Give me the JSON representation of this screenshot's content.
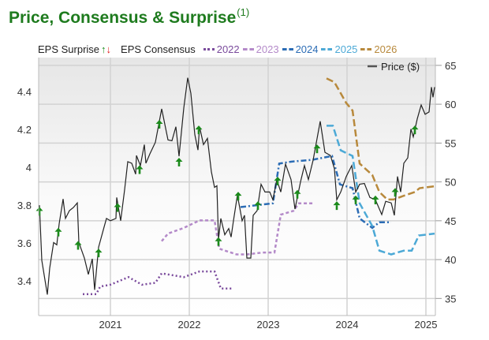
{
  "title": "Price, Consensus & Surprise",
  "title_footnote": "(1)",
  "legend": {
    "eps_surprise": "EPS Surprise",
    "up_arrow": "↑",
    "down_arrow": "↓",
    "eps_consensus": "EPS Consensus",
    "series": [
      {
        "label": "2022",
        "color": "#7a4a9c",
        "style": "dotted"
      },
      {
        "label": "2023",
        "color": "#b48ac9",
        "style": "dashed"
      },
      {
        "label": "2024",
        "color": "#2b6cb5",
        "style": "dashdot"
      },
      {
        "label": "2025",
        "color": "#4ca9d6",
        "style": "longdash"
      },
      {
        "label": "2026",
        "color": "#b8893c",
        "style": "longdash"
      }
    ],
    "price": "Price ($)"
  },
  "colors": {
    "surprise_up": "#1b8a1b",
    "surprise_down": "#e02020",
    "price": "#222222",
    "title": "#1e7b1e"
  },
  "chart_data": {
    "type": "line",
    "title": "Price, Consensus & Surprise",
    "xlim": [
      2020.09,
      2025.12
    ],
    "x_ticks": [
      "2021",
      "2022",
      "2023",
      "2024",
      "2025"
    ],
    "y_left": {
      "label": "EPS",
      "lim": [
        3.217,
        4.58
      ],
      "ticks": [
        "3.4",
        "3.6",
        "3.8",
        "4",
        "4.2",
        "4.4"
      ]
    },
    "y_right": {
      "label": "Price ($)",
      "lim": [
        32.8,
        66
      ],
      "ticks": [
        "35",
        "40",
        "45",
        "50",
        "55",
        "60",
        "65"
      ]
    },
    "grid": true,
    "legend_position": "top",
    "price": [
      [
        2020.1,
        47.0
      ],
      [
        2020.13,
        39.9
      ],
      [
        2020.2,
        35.5
      ],
      [
        2020.23,
        38.9
      ],
      [
        2020.28,
        42.2
      ],
      [
        2020.32,
        41.9
      ],
      [
        2020.35,
        44.6
      ],
      [
        2020.4,
        47.8
      ],
      [
        2020.43,
        45.3
      ],
      [
        2020.48,
        46.3
      ],
      [
        2020.53,
        46.7
      ],
      [
        2020.58,
        47.3
      ],
      [
        2020.6,
        42.2
      ],
      [
        2020.67,
        40.2
      ],
      [
        2020.72,
        38.1
      ],
      [
        2020.77,
        40.1
      ],
      [
        2020.8,
        36.1
      ],
      [
        2020.85,
        41.6
      ],
      [
        2020.92,
        44.2
      ],
      [
        2020.95,
        45.3
      ],
      [
        2021.0,
        45.0
      ],
      [
        2021.07,
        45.3
      ],
      [
        2021.08,
        48.0
      ],
      [
        2021.13,
        45.0
      ],
      [
        2021.18,
        49.0
      ],
      [
        2021.22,
        52.6
      ],
      [
        2021.27,
        52.4
      ],
      [
        2021.32,
        51.0
      ],
      [
        2021.33,
        53.4
      ],
      [
        2021.38,
        52.1
      ],
      [
        2021.43,
        54.8
      ],
      [
        2021.45,
        52.4
      ],
      [
        2021.5,
        53.6
      ],
      [
        2021.57,
        55.1
      ],
      [
        2021.65,
        59.4
      ],
      [
        2021.73,
        55.4
      ],
      [
        2021.78,
        55.3
      ],
      [
        2021.83,
        57.1
      ],
      [
        2021.87,
        53.3
      ],
      [
        2021.93,
        59.5
      ],
      [
        2021.98,
        63.4
      ],
      [
        2022.02,
        61.4
      ],
      [
        2022.07,
        56.1
      ],
      [
        2022.11,
        54.1
      ],
      [
        2022.13,
        57.1
      ],
      [
        2022.18,
        54.8
      ],
      [
        2022.23,
        55.6
      ],
      [
        2022.28,
        51.3
      ],
      [
        2022.32,
        49.3
      ],
      [
        2022.35,
        49.5
      ],
      [
        2022.37,
        42.6
      ],
      [
        2022.4,
        45.3
      ],
      [
        2022.45,
        43.2
      ],
      [
        2022.5,
        44.0
      ],
      [
        2022.53,
        42.9
      ],
      [
        2022.56,
        45.0
      ],
      [
        2022.61,
        48.3
      ],
      [
        2022.67,
        45.0
      ],
      [
        2022.7,
        45.7
      ],
      [
        2022.73,
        40.2
      ],
      [
        2022.78,
        40.2
      ],
      [
        2022.81,
        45.7
      ],
      [
        2022.86,
        46.3
      ],
      [
        2022.91,
        49.7
      ],
      [
        2022.96,
        48.7
      ],
      [
        2023.02,
        48.7
      ],
      [
        2023.06,
        47.7
      ],
      [
        2023.11,
        50.3
      ],
      [
        2023.16,
        48.7
      ],
      [
        2023.22,
        52.3
      ],
      [
        2023.29,
        50.3
      ],
      [
        2023.34,
        46.5
      ],
      [
        2023.41,
        50.0
      ],
      [
        2023.46,
        52.1
      ],
      [
        2023.51,
        50.3
      ],
      [
        2023.57,
        52.8
      ],
      [
        2023.66,
        57.8
      ],
      [
        2023.72,
        53.8
      ],
      [
        2023.79,
        53.4
      ],
      [
        2023.84,
        51.7
      ],
      [
        2023.87,
        47.7
      ],
      [
        2023.92,
        48.7
      ],
      [
        2023.99,
        50.7
      ],
      [
        2024.06,
        52.1
      ],
      [
        2024.11,
        48.7
      ],
      [
        2024.16,
        49.7
      ],
      [
        2024.22,
        49.8
      ],
      [
        2024.29,
        48.0
      ],
      [
        2024.36,
        47.7
      ],
      [
        2024.44,
        45.8
      ],
      [
        2024.49,
        47.5
      ],
      [
        2024.56,
        47.3
      ],
      [
        2024.6,
        45.7
      ],
      [
        2024.64,
        50.7
      ],
      [
        2024.68,
        48.7
      ],
      [
        2024.72,
        52.4
      ],
      [
        2024.77,
        53.1
      ],
      [
        2024.81,
        56.8
      ],
      [
        2024.84,
        55.8
      ],
      [
        2024.89,
        58.1
      ],
      [
        2024.94,
        59.9
      ],
      [
        2024.99,
        58.7
      ],
      [
        2025.04,
        59.0
      ],
      [
        2025.07,
        62.2
      ],
      [
        2025.09,
        60.9
      ],
      [
        2025.11,
        62.2
      ]
    ],
    "consensus": {
      "2022": [
        [
          2020.65,
          3.33
        ],
        [
          2020.82,
          3.33
        ],
        [
          2020.87,
          3.37
        ],
        [
          2021.0,
          3.38
        ],
        [
          2021.23,
          3.42
        ],
        [
          2021.4,
          3.38
        ],
        [
          2021.57,
          3.39
        ],
        [
          2021.65,
          3.44
        ],
        [
          2021.93,
          3.42
        ],
        [
          2022.13,
          3.45
        ],
        [
          2022.32,
          3.45
        ],
        [
          2022.4,
          3.36
        ],
        [
          2022.56,
          3.36
        ]
      ],
      "2023": [
        [
          2021.65,
          3.61
        ],
        [
          2021.73,
          3.65
        ],
        [
          2021.93,
          3.68
        ],
        [
          2022.13,
          3.72
        ],
        [
          2022.32,
          3.72
        ],
        [
          2022.38,
          3.57
        ],
        [
          2022.6,
          3.54
        ],
        [
          2022.73,
          3.54
        ],
        [
          2022.93,
          3.55
        ],
        [
          2023.08,
          3.55
        ],
        [
          2023.16,
          3.75
        ],
        [
          2023.32,
          3.77
        ],
        [
          2023.39,
          3.81
        ],
        [
          2023.57,
          3.81
        ]
      ],
      "2024": [
        [
          2022.65,
          3.79
        ],
        [
          2023.06,
          3.81
        ],
        [
          2023.14,
          4.02
        ],
        [
          2023.29,
          4.03
        ],
        [
          2023.56,
          4.04
        ],
        [
          2023.81,
          4.06
        ],
        [
          2023.91,
          3.91
        ],
        [
          2024.07,
          3.89
        ],
        [
          2024.16,
          3.73
        ],
        [
          2024.32,
          3.68
        ],
        [
          2024.41,
          3.71
        ],
        [
          2024.56,
          3.71
        ]
      ],
      "2025": [
        [
          2023.74,
          4.22
        ],
        [
          2023.82,
          4.22
        ],
        [
          2023.92,
          4.09
        ],
        [
          2024.07,
          4.06
        ],
        [
          2024.16,
          3.81
        ],
        [
          2024.32,
          3.69
        ],
        [
          2024.41,
          3.56
        ],
        [
          2024.56,
          3.54
        ],
        [
          2024.72,
          3.56
        ],
        [
          2024.82,
          3.56
        ],
        [
          2024.91,
          3.64
        ],
        [
          2025.11,
          3.65
        ]
      ],
      "2026": [
        [
          2023.74,
          4.47
        ],
        [
          2023.84,
          4.45
        ],
        [
          2023.99,
          4.34
        ],
        [
          2024.07,
          4.3
        ],
        [
          2024.16,
          4.02
        ],
        [
          2024.32,
          3.96
        ],
        [
          2024.41,
          3.87
        ],
        [
          2024.51,
          3.83
        ],
        [
          2024.59,
          3.83
        ],
        [
          2024.72,
          3.85
        ],
        [
          2024.86,
          3.87
        ],
        [
          2024.92,
          3.89
        ],
        [
          2025.11,
          3.9
        ]
      ]
    },
    "surprises": [
      [
        2020.1,
        3.77,
        "up"
      ],
      [
        2020.34,
        3.66,
        "up"
      ],
      [
        2020.59,
        3.59,
        "up"
      ],
      [
        2020.85,
        3.55,
        "up"
      ],
      [
        2021.09,
        3.79,
        "up"
      ],
      [
        2021.37,
        3.99,
        "up"
      ],
      [
        2021.62,
        4.23,
        "up"
      ],
      [
        2021.87,
        4.03,
        "up"
      ],
      [
        2022.12,
        4.2,
        "up"
      ],
      [
        2022.37,
        3.61,
        "up"
      ],
      [
        2022.62,
        3.85,
        "up"
      ],
      [
        2022.87,
        3.8,
        "up"
      ],
      [
        2023.12,
        3.93,
        "up"
      ],
      [
        2023.37,
        3.86,
        "up"
      ],
      [
        2023.62,
        4.1,
        "up"
      ],
      [
        2023.87,
        3.8,
        "up"
      ],
      [
        2024.11,
        3.83,
        "up"
      ],
      [
        2024.36,
        3.83,
        "up"
      ],
      [
        2024.61,
        3.87,
        "up"
      ],
      [
        2024.86,
        4.2,
        "up"
      ]
    ]
  }
}
